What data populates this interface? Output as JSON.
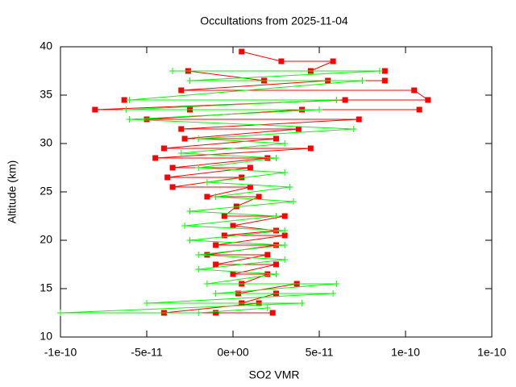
{
  "chart_data": {
    "type": "line",
    "title": "Occultations from 2025-11-04",
    "xlabel": "SO2 VMR",
    "ylabel": "Altitude (km)",
    "xlim": [
      -1e-10,
      1.5e-10
    ],
    "ylim": [
      10,
      40
    ],
    "xticks": [
      {
        "value": -1e-10,
        "label": "-1e-10"
      },
      {
        "value": -5e-11,
        "label": "-5e-11"
      },
      {
        "value": 0,
        "label": "0e+00"
      },
      {
        "value": 5e-11,
        "label": "5e-11"
      },
      {
        "value": 1e-10,
        "label": "1e-10"
      },
      {
        "value": 1.5e-10,
        "label": "1e-10"
      }
    ],
    "yticks": [
      10,
      15,
      20,
      25,
      30,
      35,
      40
    ],
    "series": [
      {
        "color": "#ff0000",
        "marker": "square",
        "x": [
          5e-12,
          2.8e-11,
          5.8e-11,
          4.5e-11,
          8.8e-11,
          -2.6e-11,
          1.8e-11,
          8.8e-11,
          5.5e-11,
          -3e-11,
          1.05e-10,
          1.13e-10,
          -6.3e-11,
          6.5e-11,
          -8e-11,
          1.08e-10,
          -2.5e-11,
          4e-11,
          -5e-11,
          7.3e-11,
          -3e-11,
          3.8e-11,
          -2.8e-11,
          2.5e-11,
          -4e-11,
          4.5e-11,
          -4.5e-11,
          2e-11,
          -3.5e-11,
          1e-11,
          -3.8e-11,
          5e-12,
          -3.5e-11,
          1e-11,
          -1.5e-11,
          1.5e-11,
          2e-12,
          -5e-12,
          3e-11,
          0,
          2.5e-11,
          -5e-12,
          3e-11,
          -1e-11,
          2.5e-11,
          -1.5e-11,
          2e-11,
          -1e-11,
          2.5e-11,
          0,
          2e-11,
          5e-12,
          3.7e-11,
          3e-12,
          2.5e-11,
          5e-12,
          1.5e-11,
          -4e-11,
          -1e-11,
          2.3e-11
        ],
        "values": [
          39.5,
          38.5,
          38.5,
          37.5,
          37.5,
          37.5,
          36.5,
          36.5,
          36.5,
          35.5,
          35.5,
          34.5,
          34.5,
          34.5,
          33.5,
          33.5,
          33.5,
          33.5,
          32.5,
          32.5,
          31.5,
          31.5,
          30.5,
          30.5,
          29.5,
          29.5,
          28.5,
          28.5,
          27.5,
          27.5,
          26.5,
          26.5,
          25.5,
          25.5,
          24.5,
          24.5,
          23.5,
          22.5,
          22.5,
          21.5,
          21,
          20.5,
          20.5,
          19.5,
          19.5,
          18.5,
          18.5,
          17.5,
          17.5,
          16.5,
          16.5,
          15.5,
          15.5,
          14.5,
          14.5,
          13.5,
          13.5,
          12.5,
          12.5,
          12.5
        ]
      },
      {
        "color": "#00ff00",
        "marker": "plus",
        "x": [
          -3.5e-11,
          8.5e-11,
          -2.5e-11,
          7.5e-11,
          -6e-11,
          6e-11,
          -6.2e-11,
          5e-11,
          -6e-11,
          7e-11,
          -2e-11,
          3e-11,
          -3e-11,
          2.5e-11,
          -2e-11,
          3e-11,
          -1.5e-11,
          3.3e-11,
          -1e-11,
          3.5e-11,
          -2.5e-11,
          2.5e-11,
          -2.8e-11,
          3e-11,
          -2.5e-11,
          3e-11,
          -2e-11,
          3e-11,
          -2e-11,
          2.5e-11,
          -1.5e-11,
          6e-11,
          -1e-11,
          5.8e-11,
          -5e-11,
          4e-11,
          -1e-10,
          -2e-11,
          2e-11
        ],
        "values": [
          37.5,
          37.5,
          36.5,
          36.5,
          34.5,
          34.5,
          33.5,
          33.5,
          32.5,
          31.5,
          30.5,
          30,
          29,
          28.5,
          27.5,
          27,
          26,
          25.5,
          24.5,
          24,
          23,
          22.5,
          21.5,
          21,
          20,
          19.5,
          18.5,
          18,
          17,
          16.5,
          15.5,
          15.5,
          14.5,
          14.5,
          13.5,
          13.5,
          12.5,
          12.5,
          13
        ]
      }
    ]
  }
}
